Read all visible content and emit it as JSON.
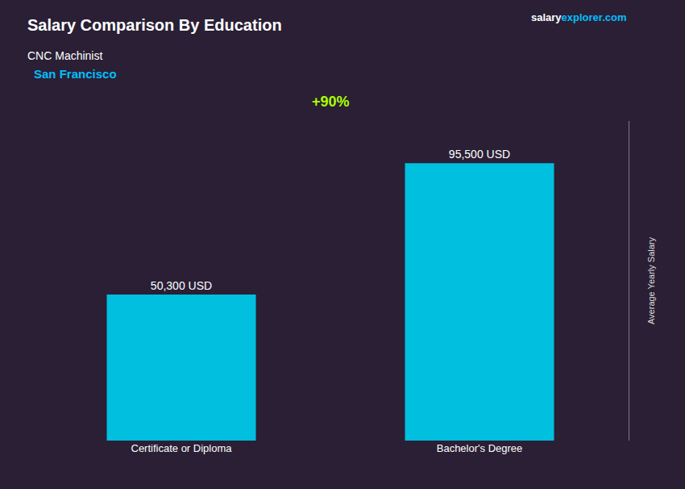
{
  "chart_data": {
    "type": "bar",
    "title": "Salary Comparison By Education",
    "subtitle": "CNC Machinist",
    "categories": [
      "Certificate or Diploma",
      "Bachelor's Degree"
    ],
    "values": [
      50300,
      95500
    ],
    "value_labels": [
      "50,300 USD",
      "95,500 USD"
    ],
    "data_labels": true,
    "color": "#00BFDF",
    "ylim": [
      0,
      110000
    ],
    "ylabel": "Average Yearly Salary",
    "tick_labels": "x",
    "grid": false,
    "annotations": [
      {
        "text": "San Francisco",
        "color": "#00BFFF"
      },
      {
        "text": "+90%",
        "color": "#AAFF00"
      },
      {
        "parts": [
          {
            "text": "salary",
            "color": "#FFFFFF"
          },
          {
            "text": "explorer.com",
            "color": "#00BFFF"
          }
        ]
      }
    ]
  }
}
